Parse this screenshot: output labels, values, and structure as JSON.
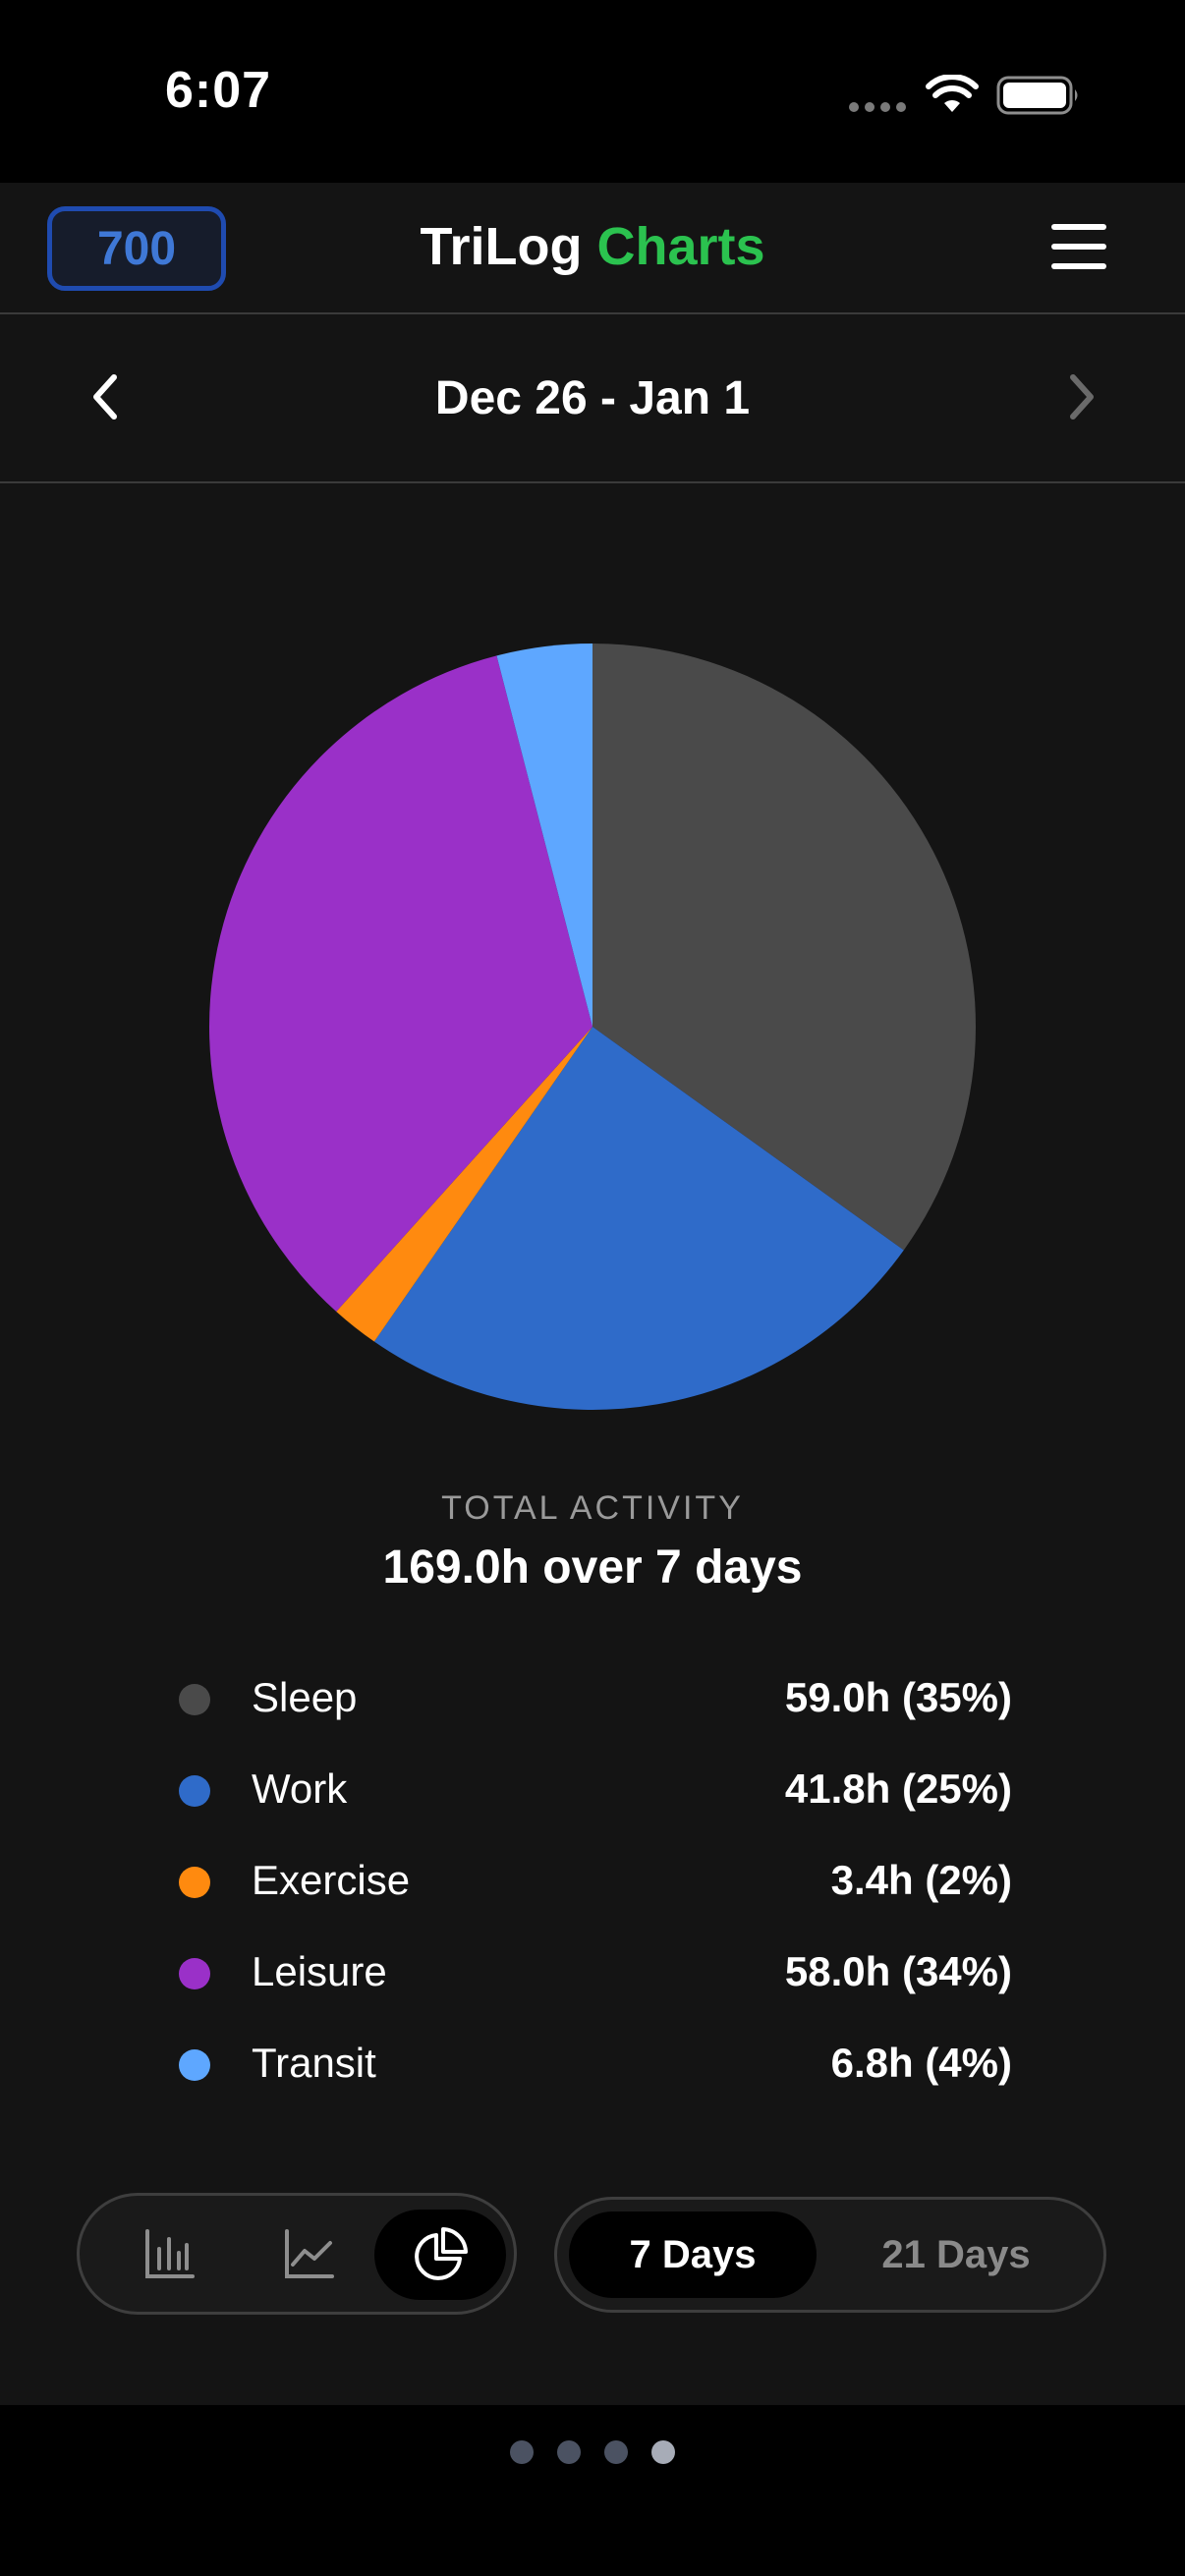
{
  "status_bar": {
    "time": "6:07"
  },
  "header": {
    "score_badge": "700",
    "title_main": "TriLog",
    "title_accent": "Charts",
    "accent_color": "#2bc24f",
    "badge_color": "#3f78d6",
    "menu_icon": "hamburger-menu-icon"
  },
  "date_nav": {
    "range_label": "Dec 26 - Jan 1",
    "prev_icon": "chevron-left-icon",
    "next_icon": "chevron-right-icon"
  },
  "chart_data": {
    "type": "pie",
    "title": "",
    "categories": [
      "Sleep",
      "Work",
      "Exercise",
      "Leisure",
      "Transit"
    ],
    "values": [
      59.0,
      41.8,
      3.4,
      58.0,
      6.8
    ],
    "colors": [
      "#4a4a4a",
      "#2f6bc9",
      "#ff8a0f",
      "#9a30c8",
      "#5ea7ff"
    ],
    "start_angle_deg": 0,
    "direction": "clockwise"
  },
  "summary": {
    "label": "TOTAL ACTIVITY",
    "value": "169.0h over 7 days"
  },
  "legend": {
    "items": [
      {
        "name": "Sleep",
        "value": "59.0h (35%)",
        "color": "#4a4a4a"
      },
      {
        "name": "Work",
        "value": "41.8h (25%)",
        "color": "#2f6bc9"
      },
      {
        "name": "Exercise",
        "value": "3.4h (2%)",
        "color": "#ff8a0f"
      },
      {
        "name": "Leisure",
        "value": "58.0h (34%)",
        "color": "#9a30c8"
      },
      {
        "name": "Transit",
        "value": "6.8h (4%)",
        "color": "#5ea7ff"
      }
    ]
  },
  "controls": {
    "chart_types": [
      {
        "icon": "bar-chart-icon",
        "selected": false
      },
      {
        "icon": "line-chart-icon",
        "selected": false
      },
      {
        "icon": "pie-chart-icon",
        "selected": true
      }
    ],
    "ranges": [
      {
        "label": "7 Days",
        "selected": true
      },
      {
        "label": "21 Days",
        "selected": false
      }
    ]
  },
  "pagination": {
    "pages": 4,
    "current": 4
  }
}
